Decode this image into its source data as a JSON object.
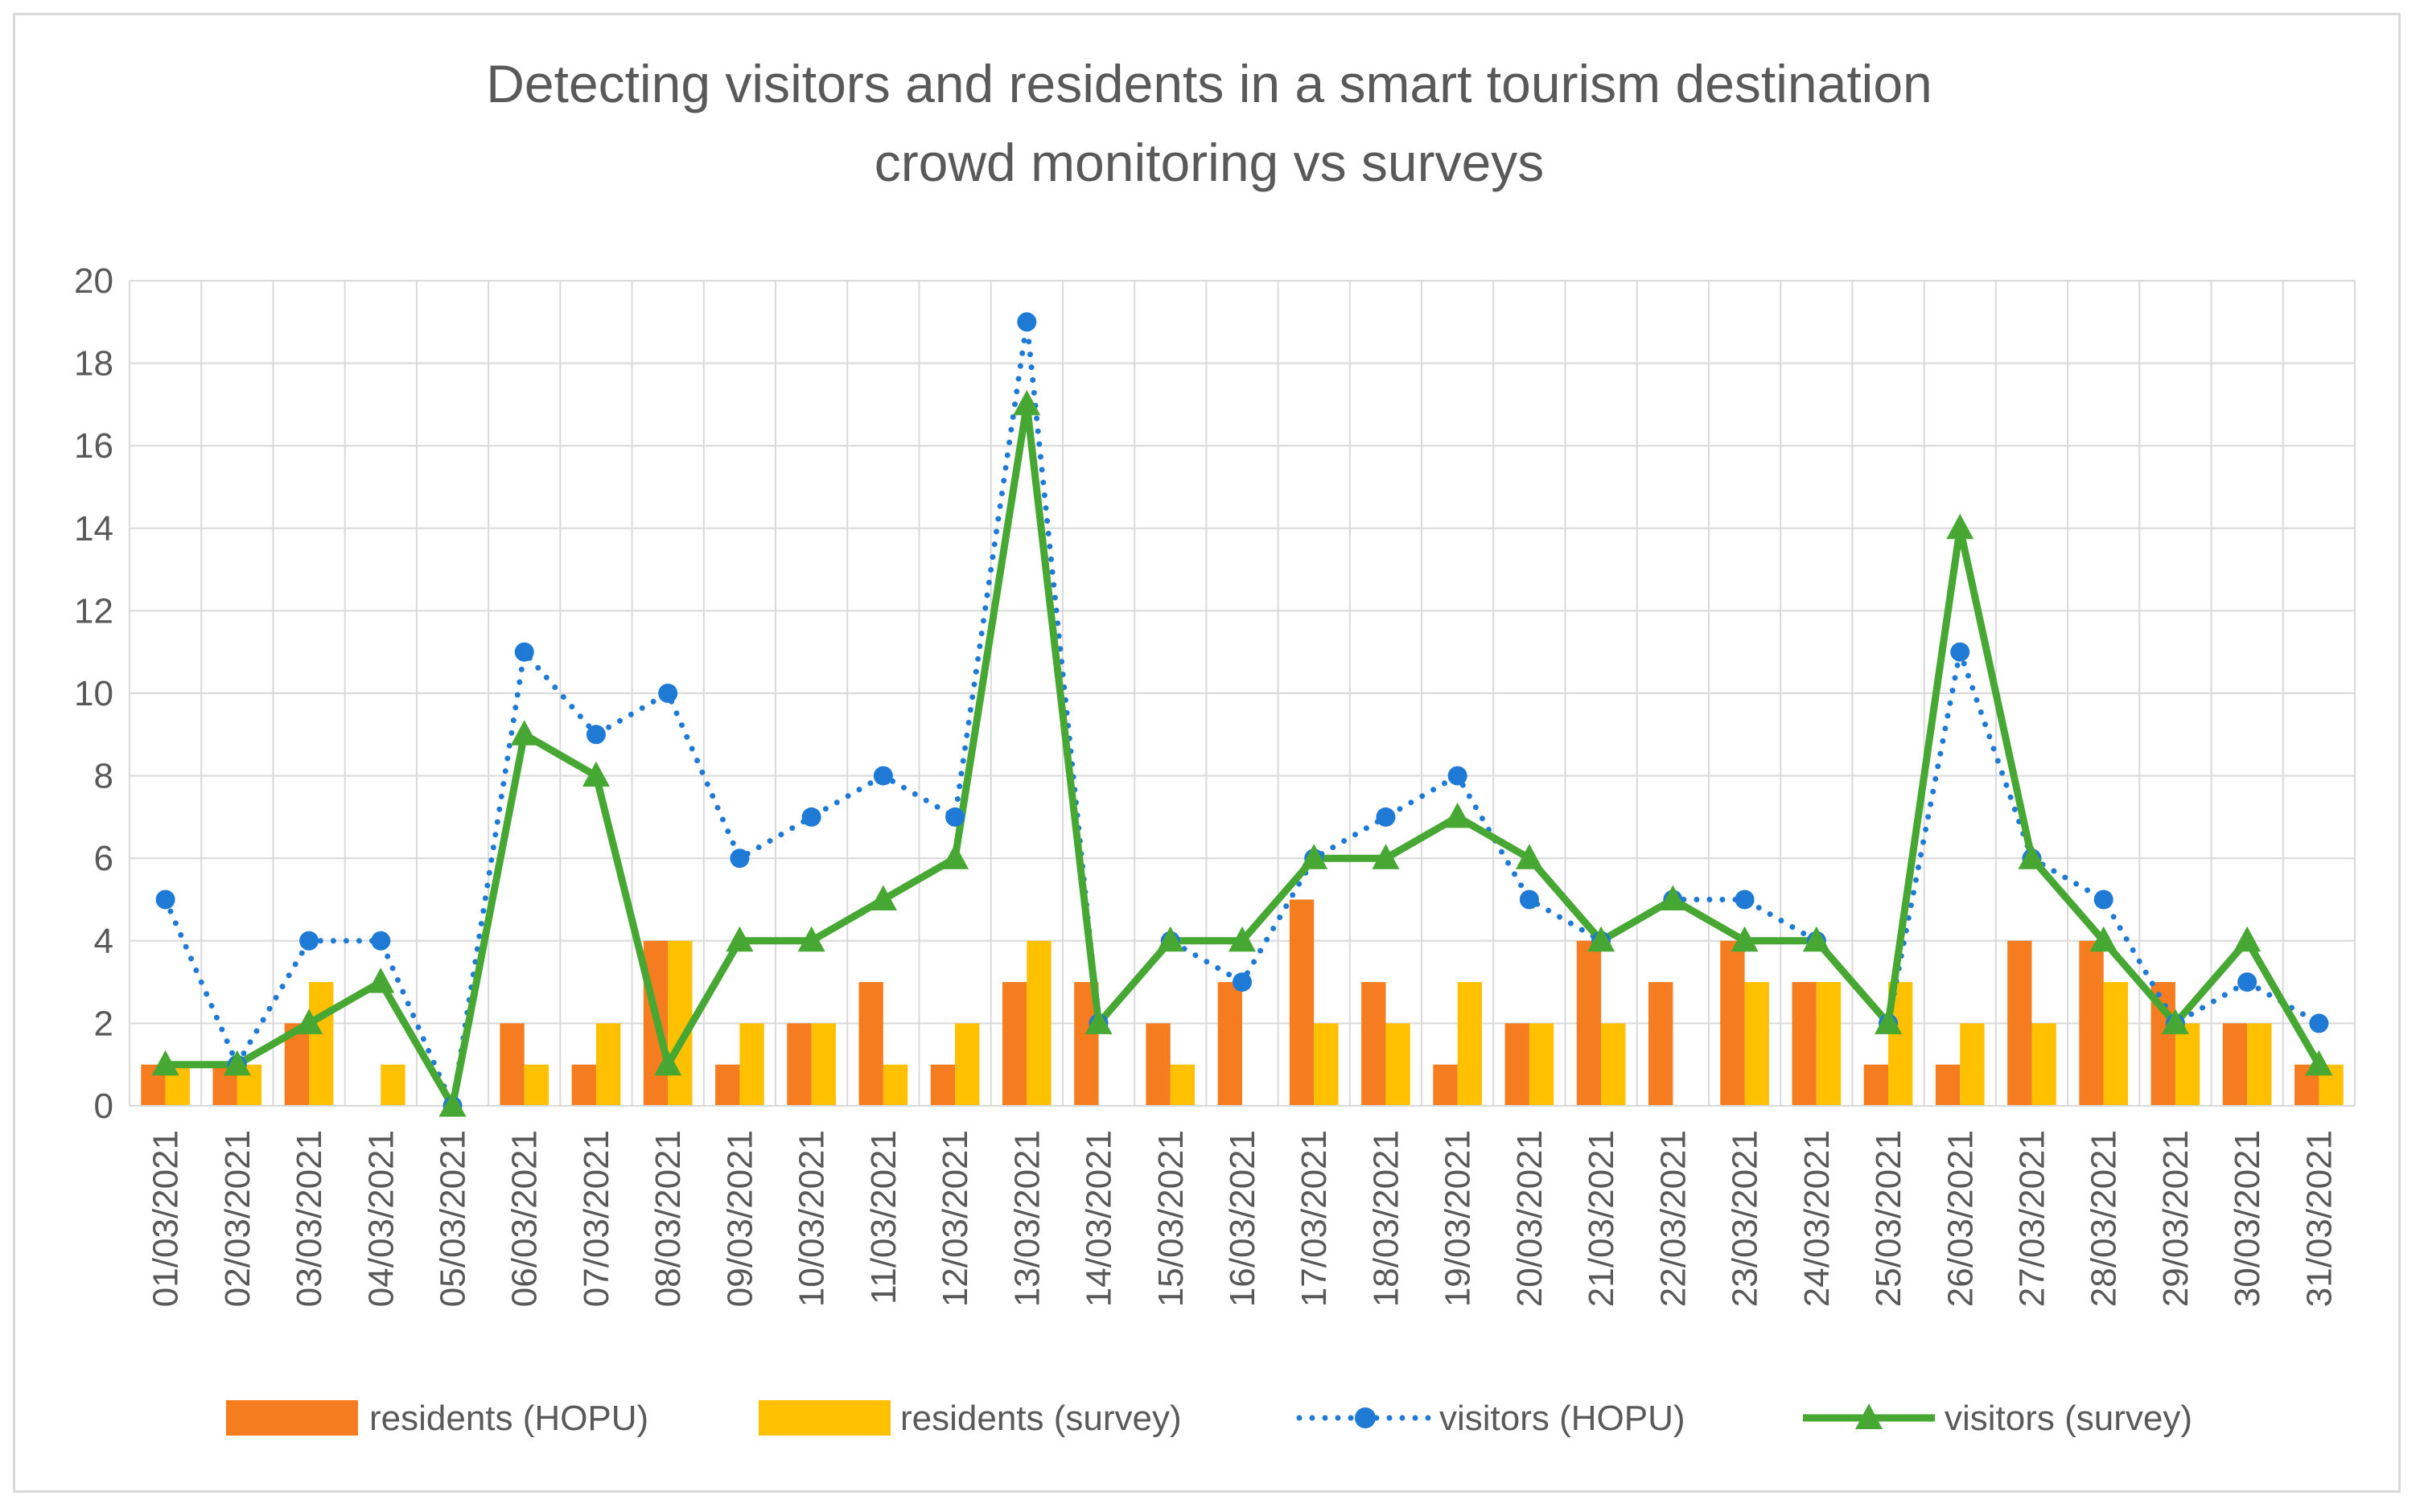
{
  "chart_data": {
    "type": "bar",
    "title": "Detecting visitors and residents in a smart tourism destination",
    "subtitle": "crowd monitoring vs surveys",
    "xlabel": "",
    "ylabel": "",
    "ylim": [
      0,
      20
    ],
    "yticks": [
      0,
      2,
      4,
      6,
      8,
      10,
      12,
      14,
      16,
      18,
      20
    ],
    "grid": true,
    "legend_position": "bottom",
    "categories": [
      "01/03/2021",
      "02/03/2021",
      "03/03/2021",
      "04/03/2021",
      "05/03/2021",
      "06/03/2021",
      "07/03/2021",
      "08/03/2021",
      "09/03/2021",
      "10/03/2021",
      "11/03/2021",
      "12/03/2021",
      "13/03/2021",
      "14/03/2021",
      "15/03/2021",
      "16/03/2021",
      "17/03/2021",
      "18/03/2021",
      "19/03/2021",
      "20/03/2021",
      "21/03/2021",
      "22/03/2021",
      "23/03/2021",
      "24/03/2021",
      "25/03/2021",
      "26/03/2021",
      "27/03/2021",
      "28/03/2021",
      "29/03/2021",
      "30/03/2021",
      "31/03/2021"
    ],
    "series": [
      {
        "name": "residents (HOPU)",
        "kind": "bar",
        "color": "#f57c1f",
        "values": [
          1,
          1,
          2,
          0,
          0,
          2,
          1,
          4,
          1,
          2,
          3,
          1,
          3,
          3,
          2,
          3,
          5,
          3,
          1,
          2,
          4,
          3,
          4,
          3,
          1,
          1,
          4,
          4,
          3,
          2,
          1
        ]
      },
      {
        "name": "residents (survey)",
        "kind": "bar",
        "color": "#ffc000",
        "values": [
          1,
          1,
          3,
          1,
          0,
          1,
          2,
          4,
          2,
          2,
          1,
          2,
          4,
          0,
          1,
          0,
          2,
          2,
          3,
          2,
          2,
          0,
          3,
          3,
          3,
          2,
          2,
          3,
          2,
          2,
          1
        ]
      },
      {
        "name": "visitors (HOPU)",
        "kind": "line-dotted",
        "color": "#1f7ad6",
        "values": [
          5,
          1,
          4,
          4,
          0,
          11,
          9,
          10,
          6,
          7,
          8,
          7,
          19,
          2,
          4,
          3,
          6,
          7,
          8,
          5,
          4,
          5,
          5,
          4,
          2,
          11,
          6,
          5,
          2,
          3,
          2
        ]
      },
      {
        "name": "visitors (survey)",
        "kind": "line",
        "color": "#46a733",
        "values": [
          1,
          1,
          2,
          3,
          0,
          9,
          8,
          1,
          4,
          4,
          5,
          6,
          17,
          2,
          4,
          4,
          6,
          6,
          7,
          6,
          4,
          5,
          4,
          4,
          2,
          14,
          6,
          4,
          2,
          4,
          1
        ]
      }
    ]
  }
}
